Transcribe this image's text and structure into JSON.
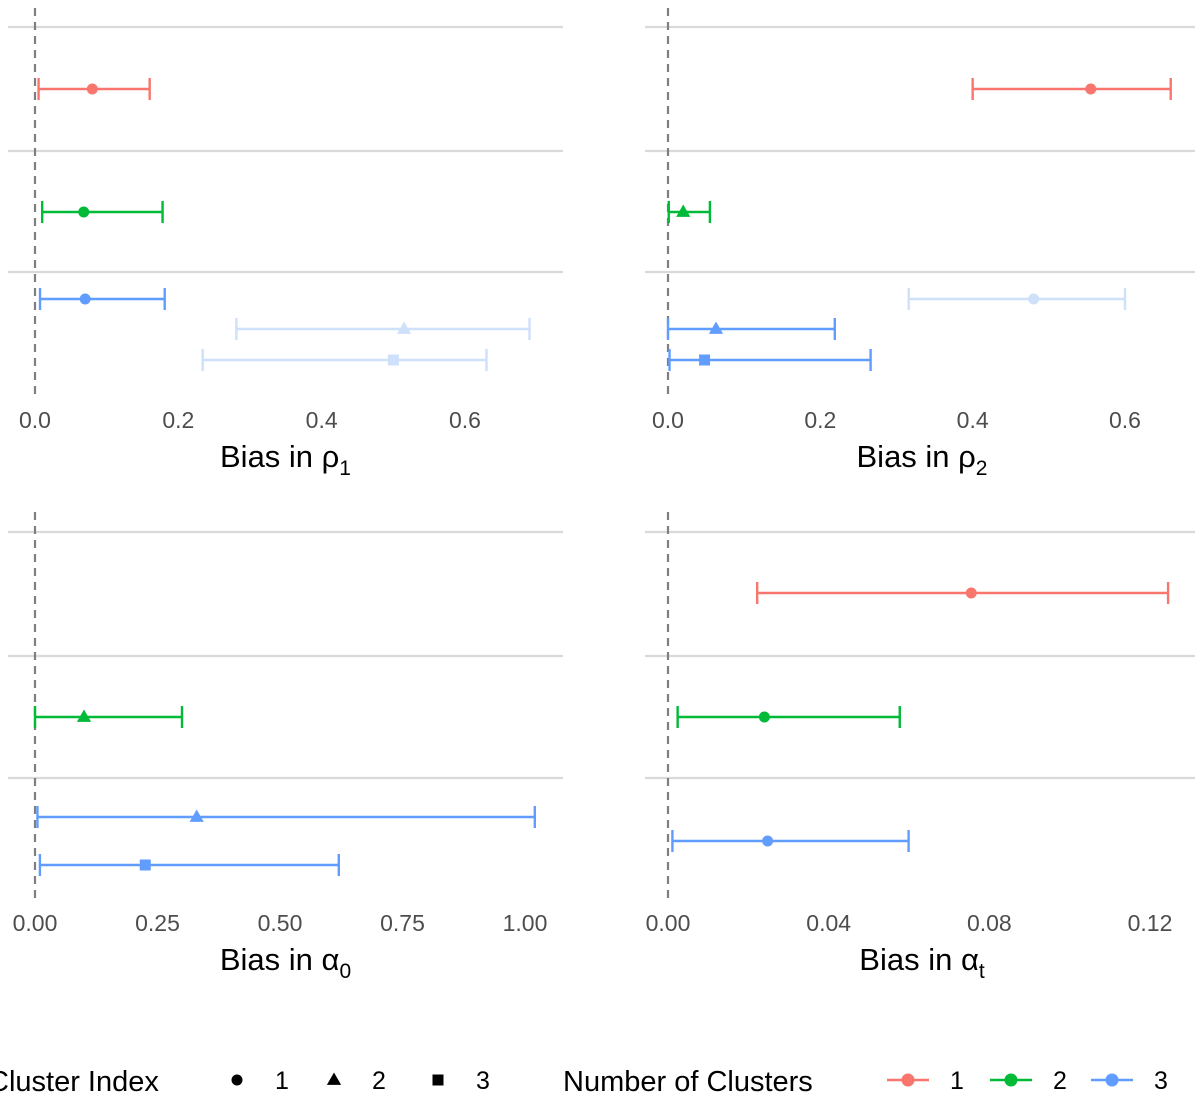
{
  "chart_data": [
    {
      "type": "errorbar",
      "xlabel_main": "Bias in ρ",
      "xlabel_sub": "1",
      "xticks": [
        0.0,
        0.2,
        0.4,
        0.6
      ],
      "xtick_labels": [
        "0.0",
        "0.2",
        "0.4",
        "0.6"
      ],
      "xlim": [
        -0.04,
        0.72
      ],
      "reference_line": 0,
      "points": [
        {
          "row": 1,
          "clusters": 1,
          "cluster_index": 1,
          "estimate": 0.08,
          "lower": 0.005,
          "upper": 0.16,
          "faded": false
        },
        {
          "row": 2,
          "clusters": 2,
          "cluster_index": 1,
          "estimate": 0.068,
          "lower": 0.01,
          "upper": 0.178,
          "faded": false
        },
        {
          "row": 3,
          "clusters": 3,
          "cluster_index": 1,
          "estimate": 0.07,
          "lower": 0.007,
          "upper": 0.181,
          "faded": false
        },
        {
          "row": 3,
          "clusters": 3,
          "cluster_index": 2,
          "estimate": 0.515,
          "lower": 0.281,
          "upper": 0.69,
          "faded": true
        },
        {
          "row": 3,
          "clusters": 3,
          "cluster_index": 3,
          "estimate": 0.5,
          "lower": 0.234,
          "upper": 0.63,
          "faded": true
        }
      ]
    },
    {
      "type": "errorbar",
      "xlabel_main": "Bias in ρ",
      "xlabel_sub": "2",
      "xticks": [
        0.0,
        0.2,
        0.4,
        0.6
      ],
      "xtick_labels": [
        "0.0",
        "0.2",
        "0.4",
        "0.6"
      ],
      "xlim": [
        -0.04,
        0.69
      ],
      "reference_line": 0,
      "points": [
        {
          "row": 1,
          "clusters": 1,
          "cluster_index": 1,
          "estimate": 0.555,
          "lower": 0.4,
          "upper": 0.66,
          "faded": false
        },
        {
          "row": 2,
          "clusters": 2,
          "cluster_index": 2,
          "estimate": 0.02,
          "lower": 0.001,
          "upper": 0.055,
          "faded": false
        },
        {
          "row": 3,
          "clusters": 3,
          "cluster_index": 1,
          "estimate": 0.48,
          "lower": 0.316,
          "upper": 0.6,
          "faded": true
        },
        {
          "row": 3,
          "clusters": 3,
          "cluster_index": 2,
          "estimate": 0.063,
          "lower": 0.0,
          "upper": 0.219,
          "faded": false
        },
        {
          "row": 3,
          "clusters": 3,
          "cluster_index": 3,
          "estimate": 0.048,
          "lower": 0.002,
          "upper": 0.266,
          "faded": false
        }
      ]
    },
    {
      "type": "errorbar",
      "xlabel_main": "Bias in α",
      "xlabel_sub": "0",
      "xticks": [
        0.0,
        0.25,
        0.5,
        0.75,
        1.0
      ],
      "xtick_labels": [
        "0.00",
        "0.25",
        "0.50",
        "0.75",
        "1.00"
      ],
      "xlim": [
        -0.06,
        1.075
      ],
      "reference_line": 0,
      "points": [
        {
          "row": 2,
          "clusters": 2,
          "cluster_index": 2,
          "estimate": 0.1,
          "lower": 0.0,
          "upper": 0.3,
          "faded": false
        },
        {
          "row": 3,
          "clusters": 3,
          "cluster_index": 2,
          "estimate": 0.33,
          "lower": 0.005,
          "upper": 1.02,
          "faded": false
        },
        {
          "row": 3,
          "clusters": 3,
          "cluster_index": 3,
          "estimate": 0.225,
          "lower": 0.01,
          "upper": 0.62,
          "faded": false
        }
      ]
    },
    {
      "type": "errorbar",
      "xlabel_main": "Bias in α",
      "xlabel_sub": "t",
      "xticks": [
        0.0,
        0.04,
        0.08,
        0.12
      ],
      "xtick_labels": [
        "0.00",
        "0.04",
        "0.08",
        "0.12"
      ],
      "xlim": [
        -0.004,
        0.129
      ],
      "reference_line": 0,
      "points": [
        {
          "row": 1,
          "clusters": 1,
          "cluster_index": 1,
          "estimate": 0.0755,
          "lower": 0.0222,
          "upper": 0.1245,
          "faded": false
        },
        {
          "row": 2,
          "clusters": 2,
          "cluster_index": 1,
          "estimate": 0.024,
          "lower": 0.0024,
          "upper": 0.0577,
          "faded": false
        },
        {
          "row": 3,
          "clusters": 3,
          "cluster_index": 1,
          "estimate": 0.0248,
          "lower": 0.0011,
          "upper": 0.0599,
          "faded": false
        }
      ]
    }
  ],
  "legend": {
    "cluster_index_title": "Cluster Index",
    "cluster_index_items": [
      {
        "label": "1",
        "shape": "circle"
      },
      {
        "label": "2",
        "shape": "triangle"
      },
      {
        "label": "3",
        "shape": "square"
      }
    ],
    "num_clusters_title": "Number of Clusters",
    "num_clusters_items": [
      {
        "label": "1",
        "color": "#f8766d"
      },
      {
        "label": "2",
        "color": "#00ba38"
      },
      {
        "label": "3",
        "color": "#619cff"
      }
    ]
  },
  "colors": {
    "cluster_1": "#f8766d",
    "cluster_2": "#00ba38",
    "cluster_3": "#619cff",
    "faded": "#cfe0fb",
    "gridline": "#d9d9d9",
    "reference_line": "#7f7f7f",
    "axis_text": "#4d4d4d"
  }
}
